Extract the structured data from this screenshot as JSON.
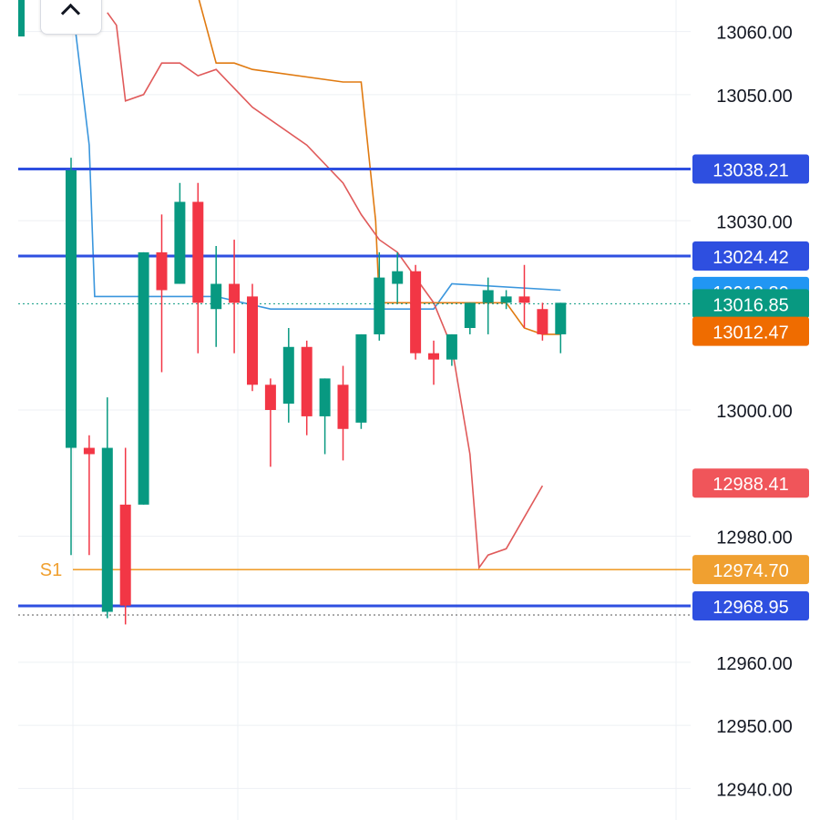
{
  "colors": {
    "up": "#089981",
    "down": "#f23645",
    "level_blue": "#2e4fe0",
    "pivot_orange": "#f0a030",
    "grid": "#eef0f4",
    "axis_text": "#131722",
    "line_blue": "#3a96dd",
    "line_orange": "#e07a10",
    "line_red": "#e05a5a"
  },
  "icons": {
    "collapse": "chevron-up-icon"
  },
  "chart_data": {
    "type": "candlestick",
    "ylim": [
      12935,
      13065
    ],
    "y_ticks": [
      "13060.00",
      "13050.00",
      "13030.00",
      "13000.00",
      "12980.00",
      "12960.00",
      "12950.00",
      "12940.00"
    ],
    "y_tick_values": [
      13060,
      13050,
      13030,
      13000,
      12980,
      12960,
      12950,
      12940
    ],
    "candles": [
      {
        "o": 12994,
        "h": 13040,
        "l": 12977,
        "c": 13038
      },
      {
        "o": 12994,
        "h": 12996,
        "l": 12977,
        "c": 12993
      },
      {
        "o": 12968,
        "h": 13002,
        "l": 12967,
        "c": 12994
      },
      {
        "o": 12985,
        "h": 12994,
        "l": 12966,
        "c": 12969
      },
      {
        "o": 12985,
        "h": 13025,
        "l": 12985,
        "c": 13025
      },
      {
        "o": 13025,
        "h": 13031,
        "l": 13006,
        "c": 13019
      },
      {
        "o": 13020,
        "h": 13036,
        "l": 13020,
        "c": 13033
      },
      {
        "o": 13033,
        "h": 13036,
        "l": 13009,
        "c": 13017
      },
      {
        "o": 13016,
        "h": 13026,
        "l": 13010,
        "c": 13020
      },
      {
        "o": 13020,
        "h": 13027,
        "l": 13009,
        "c": 13017
      },
      {
        "o": 13018,
        "h": 13020,
        "l": 13003,
        "c": 13004
      },
      {
        "o": 13004,
        "h": 13005,
        "l": 12991,
        "c": 13000
      },
      {
        "o": 13001,
        "h": 13013,
        "l": 12998,
        "c": 13010
      },
      {
        "o": 13010,
        "h": 13011,
        "l": 12996,
        "c": 12999
      },
      {
        "o": 12999,
        "h": 13005,
        "l": 12993,
        "c": 13005
      },
      {
        "o": 13004,
        "h": 13007,
        "l": 12992,
        "c": 12997
      },
      {
        "o": 12998,
        "h": 13012,
        "l": 12997,
        "c": 13012
      },
      {
        "o": 13012,
        "h": 13025,
        "l": 13011,
        "c": 13021
      },
      {
        "o": 13020,
        "h": 13025,
        "l": 13017,
        "c": 13022
      },
      {
        "o": 13022,
        "h": 13023,
        "l": 13008,
        "c": 13009
      },
      {
        "o": 13009,
        "h": 13011,
        "l": 13004,
        "c": 13008
      },
      {
        "o": 13008,
        "h": 13012,
        "l": 13007,
        "c": 13012
      },
      {
        "o": 13013,
        "h": 13017,
        "l": 13012,
        "c": 13017
      },
      {
        "o": 13017,
        "h": 13021,
        "l": 13012,
        "c": 13019
      },
      {
        "o": 13017,
        "h": 13019,
        "l": 13016,
        "c": 13018
      },
      {
        "o": 13018,
        "h": 13023,
        "l": 13013,
        "c": 13017
      },
      {
        "o": 13016,
        "h": 13017,
        "l": 13011,
        "c": 13012
      },
      {
        "o": 13012,
        "h": 13017,
        "l": 13009,
        "c": 13017
      }
    ],
    "indicator_lines": [
      {
        "color": "#3a96dd",
        "points": [
          [
            0,
            13066
          ],
          [
            1,
            13042
          ],
          [
            1.3,
            13018
          ],
          [
            8,
            13018
          ],
          [
            11,
            13016
          ],
          [
            18,
            13016
          ],
          [
            20,
            13016
          ],
          [
            21,
            13020
          ],
          [
            27,
            13019
          ]
        ]
      },
      {
        "color": "#e07a10",
        "points": [
          [
            6.5,
            13071
          ],
          [
            8,
            13055
          ],
          [
            9,
            13055
          ],
          [
            10,
            13054
          ],
          [
            15,
            13052
          ],
          [
            16,
            13052
          ],
          [
            16.8,
            13030
          ],
          [
            17,
            13017
          ],
          [
            19,
            13017
          ],
          [
            24,
            13017
          ],
          [
            25,
            13013
          ],
          [
            26,
            13012
          ],
          [
            27,
            13012
          ]
        ]
      },
      {
        "color": "#e05a5a",
        "points": [
          [
            2,
            13063
          ],
          [
            2.5,
            13061
          ],
          [
            3,
            13049
          ],
          [
            4,
            13050
          ],
          [
            5,
            13055
          ],
          [
            6,
            13055
          ],
          [
            7,
            13053
          ],
          [
            8,
            13054
          ],
          [
            10,
            13048
          ],
          [
            13,
            13042
          ],
          [
            15,
            13036
          ],
          [
            16,
            13031
          ],
          [
            17,
            13027
          ],
          [
            18,
            13025
          ],
          [
            19,
            13021
          ],
          [
            20,
            13017
          ],
          [
            21,
            13010
          ],
          [
            22,
            12993
          ],
          [
            22.5,
            12975
          ],
          [
            23,
            12977
          ],
          [
            24,
            12978
          ],
          [
            25,
            12983
          ],
          [
            26,
            12988
          ]
        ]
      }
    ],
    "levels": [
      {
        "value": 13038.21,
        "label": "13038.21",
        "kind": "blue"
      },
      {
        "value": 13024.42,
        "label": "13024.42",
        "kind": "blue"
      },
      {
        "value": 12974.7,
        "label": "12974.70",
        "kind": "pivot",
        "tag": "S1"
      },
      {
        "value": 12968.95,
        "label": "12968.95",
        "kind": "blue"
      }
    ],
    "price_tags": [
      {
        "value": 13018.8,
        "label": "13018.80",
        "bg": "#2196f3"
      },
      {
        "value": 13016.85,
        "label": "13016.85",
        "bg": "#089981"
      },
      {
        "value": 13012.47,
        "label": "13012.47",
        "bg": "#ef6c00"
      },
      {
        "value": 12988.41,
        "label": "12988.41",
        "bg": "#f0555a"
      }
    ],
    "current_price": 13016.85
  }
}
